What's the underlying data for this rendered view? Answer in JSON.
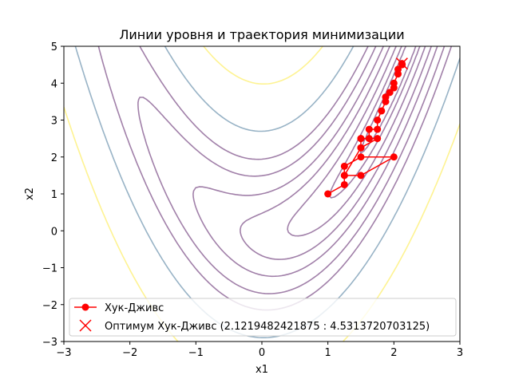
{
  "chart_data": {
    "type": "line",
    "title": "Линии уровня и траектория минимизации",
    "xlabel": "x1",
    "ylabel": "x2",
    "xlim": [
      -3,
      3
    ],
    "ylim": [
      -3,
      5
    ],
    "xticks": [
      -3,
      -2,
      -1,
      0,
      1,
      2,
      3
    ],
    "yticks": [
      -3,
      -2,
      -1,
      0,
      1,
      2,
      3,
      4,
      5
    ],
    "grid": false,
    "legend_position": "lower-right",
    "contour_levels": [
      {
        "level": 0.2,
        "color": "#440154"
      },
      {
        "level": 0.6,
        "color": "#440154"
      },
      {
        "level": 1.5,
        "color": "#440154"
      },
      {
        "level": 3,
        "color": "#440154"
      },
      {
        "level": 5,
        "color": "#440154"
      },
      {
        "level": 8,
        "color": "#440154"
      },
      {
        "level": 11.7,
        "color": "#440154"
      },
      {
        "level": 20,
        "color": "#31688e"
      },
      {
        "level": 40,
        "color": "#fde725"
      }
    ],
    "series": [
      {
        "name": "Хук-Дживс",
        "color": "#ff0000",
        "x": [
          1.0,
          1.25,
          1.25,
          1.5,
          2.0,
          1.5,
          1.25,
          1.25,
          1.5,
          1.5,
          1.75,
          1.5,
          1.5,
          1.625,
          1.625,
          1.75,
          1.75,
          1.8125,
          1.875,
          1.875,
          1.9375,
          2.0,
          2.0,
          2.0625,
          2.0625,
          2.125,
          2.1219
        ],
        "y": [
          1.0,
          1.25,
          1.5,
          1.5,
          2.0,
          2.0,
          1.75,
          1.5,
          2.25,
          2.5,
          2.5,
          2.25,
          2.5,
          2.5,
          2.75,
          2.75,
          3.0,
          3.25,
          3.5,
          3.625,
          3.75,
          3.875,
          4.0,
          4.25,
          4.375,
          4.5,
          4.5314
        ]
      },
      {
        "name": "Оптимум Хук-Дживс (2.1219482421875 : 4.5313720703125)",
        "color": "#ff0000",
        "marker": "x",
        "x": [
          2.1219482421875
        ],
        "y": [
          4.5313720703125
        ]
      }
    ]
  }
}
